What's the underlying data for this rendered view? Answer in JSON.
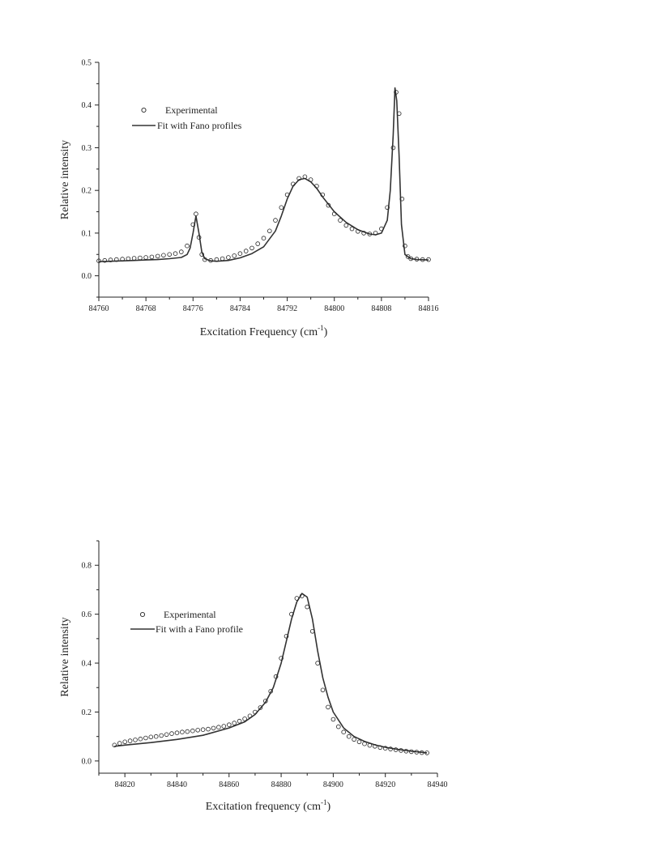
{
  "chart_data": [
    {
      "type": "line",
      "title": "",
      "xlabel": "Excitation Frequency (cm",
      "xlabel_sup": "-1",
      "xlabel_end": ")",
      "ylabel": "Relative intensity",
      "xlim": [
        84760,
        84816
      ],
      "ylim": [
        -0.05,
        0.5
      ],
      "xticks": [
        84760,
        84768,
        84776,
        84784,
        84792,
        84800,
        84808,
        84816
      ],
      "xtick_labels": [
        "84760",
        "84768",
        "84776",
        "84784",
        "84792",
        "84800",
        "84808",
        "84816"
      ],
      "yticks": [
        0.0,
        0.1,
        0.2,
        0.3,
        0.4,
        0.5
      ],
      "ytick_labels": [
        "0.0",
        "0.1",
        "0.2",
        "0.3",
        "0.4",
        "0.5"
      ],
      "grid": false,
      "legend": {
        "position": "upper-left"
      },
      "series": [
        {
          "name": "Experimental",
          "marker": "open-circle",
          "x": [
            84760,
            84761,
            84762,
            84763,
            84764,
            84765,
            84766,
            84767,
            84768,
            84769,
            84770,
            84771,
            84772,
            84773,
            84774,
            84775,
            84776,
            84776.5,
            84777,
            84777.5,
            84778,
            84779,
            84780,
            84781,
            84782,
            84783,
            84784,
            84785,
            84786,
            84787,
            84788,
            84789,
            84790,
            84791,
            84792,
            84793,
            84794,
            84795,
            84796,
            84797,
            84798,
            84799,
            84800,
            84801,
            84802,
            84803,
            84804,
            84805,
            84806,
            84807,
            84808,
            84809,
            84810,
            84810.5,
            84811,
            84811.5,
            84812,
            84812.5,
            84813,
            84814,
            84815,
            84816
          ],
          "y": [
            0.035,
            0.036,
            0.037,
            0.038,
            0.039,
            0.04,
            0.041,
            0.042,
            0.043,
            0.044,
            0.046,
            0.048,
            0.05,
            0.052,
            0.056,
            0.07,
            0.12,
            0.145,
            0.09,
            0.05,
            0.038,
            0.036,
            0.038,
            0.04,
            0.043,
            0.047,
            0.052,
            0.058,
            0.065,
            0.075,
            0.088,
            0.105,
            0.13,
            0.16,
            0.19,
            0.215,
            0.228,
            0.232,
            0.225,
            0.21,
            0.19,
            0.165,
            0.145,
            0.13,
            0.118,
            0.11,
            0.104,
            0.1,
            0.098,
            0.1,
            0.11,
            0.16,
            0.3,
            0.43,
            0.38,
            0.18,
            0.07,
            0.045,
            0.04,
            0.039,
            0.038,
            0.038
          ]
        },
        {
          "name": "Fit with Fano profiles",
          "marker": "line",
          "x": [
            84760,
            84762,
            84764,
            84766,
            84768,
            84770,
            84772,
            84774,
            84775,
            84775.5,
            84776,
            84776.5,
            84777,
            84777.5,
            84778,
            84779,
            84780,
            84782,
            84784,
            84786,
            84788,
            84790,
            84791,
            84792,
            84793,
            84794,
            84795,
            84796,
            84797,
            84798,
            84800,
            84802,
            84804,
            84806,
            84807,
            84808,
            84809,
            84809.5,
            84810,
            84810.3,
            84810.6,
            84811,
            84811.4,
            84812,
            84813,
            84814,
            84816
          ],
          "y": [
            0.033,
            0.034,
            0.035,
            0.036,
            0.037,
            0.038,
            0.04,
            0.043,
            0.05,
            0.065,
            0.1,
            0.14,
            0.1,
            0.055,
            0.04,
            0.035,
            0.034,
            0.036,
            0.042,
            0.052,
            0.068,
            0.105,
            0.14,
            0.18,
            0.21,
            0.225,
            0.228,
            0.22,
            0.205,
            0.185,
            0.15,
            0.125,
            0.108,
            0.098,
            0.096,
            0.1,
            0.13,
            0.2,
            0.33,
            0.44,
            0.41,
            0.28,
            0.12,
            0.05,
            0.04,
            0.038,
            0.037
          ]
        }
      ]
    },
    {
      "type": "line",
      "title": "",
      "xlabel": "Excitation frequency (cm",
      "xlabel_sup": "-1",
      "xlabel_end": ")",
      "ylabel": "Relative intensity",
      "xlim": [
        84810,
        84940
      ],
      "ylim": [
        -0.05,
        0.9
      ],
      "xticks": [
        84820,
        84840,
        84860,
        84880,
        84900,
        84920,
        84940
      ],
      "xtick_labels": [
        "84820",
        "84840",
        "84860",
        "84880",
        "84900",
        "84920",
        "84940"
      ],
      "yticks": [
        0.0,
        0.2,
        0.4,
        0.6,
        0.8
      ],
      "ytick_labels": [
        "0.0",
        "0.2",
        "0.4",
        "0.6",
        "0.8"
      ],
      "grid": false,
      "legend": {
        "position": "upper-left"
      },
      "series": [
        {
          "name": "Experimental",
          "marker": "open-circle",
          "x": [
            84816,
            84818,
            84820,
            84822,
            84824,
            84826,
            84828,
            84830,
            84832,
            84834,
            84836,
            84838,
            84840,
            84842,
            84844,
            84846,
            84848,
            84850,
            84852,
            84854,
            84856,
            84858,
            84860,
            84862,
            84864,
            84866,
            84868,
            84870,
            84872,
            84874,
            84876,
            84878,
            84880,
            84882,
            84884,
            84886,
            84888,
            84890,
            84892,
            84894,
            84896,
            84898,
            84900,
            84902,
            84904,
            84906,
            84908,
            84910,
            84912,
            84914,
            84916,
            84918,
            84920,
            84922,
            84924,
            84926,
            84928,
            84930,
            84932,
            84934,
            84936
          ],
          "y": [
            0.065,
            0.072,
            0.078,
            0.082,
            0.086,
            0.09,
            0.094,
            0.098,
            0.1,
            0.104,
            0.108,
            0.112,
            0.115,
            0.118,
            0.12,
            0.123,
            0.126,
            0.128,
            0.13,
            0.134,
            0.138,
            0.142,
            0.148,
            0.155,
            0.163,
            0.172,
            0.184,
            0.2,
            0.218,
            0.245,
            0.285,
            0.345,
            0.42,
            0.51,
            0.6,
            0.665,
            0.675,
            0.63,
            0.53,
            0.4,
            0.29,
            0.22,
            0.17,
            0.14,
            0.118,
            0.1,
            0.088,
            0.078,
            0.07,
            0.064,
            0.06,
            0.055,
            0.052,
            0.049,
            0.046,
            0.043,
            0.04,
            0.038,
            0.036,
            0.034,
            0.033
          ]
        },
        {
          "name": "Fit with a Fano profile",
          "marker": "line",
          "x": [
            84816,
            84820,
            84830,
            84840,
            84850,
            84860,
            84866,
            84870,
            84874,
            84877,
            84880,
            84882,
            84884,
            84886,
            84888,
            84890,
            84892,
            84894,
            84896,
            84898,
            84900,
            84904,
            84908,
            84912,
            84916,
            84920,
            84925,
            84930,
            84936
          ],
          "y": [
            0.06,
            0.065,
            0.075,
            0.088,
            0.105,
            0.135,
            0.16,
            0.19,
            0.24,
            0.3,
            0.4,
            0.49,
            0.58,
            0.65,
            0.685,
            0.67,
            0.58,
            0.45,
            0.34,
            0.26,
            0.2,
            0.135,
            0.1,
            0.08,
            0.066,
            0.056,
            0.047,
            0.04,
            0.033
          ]
        }
      ]
    }
  ]
}
